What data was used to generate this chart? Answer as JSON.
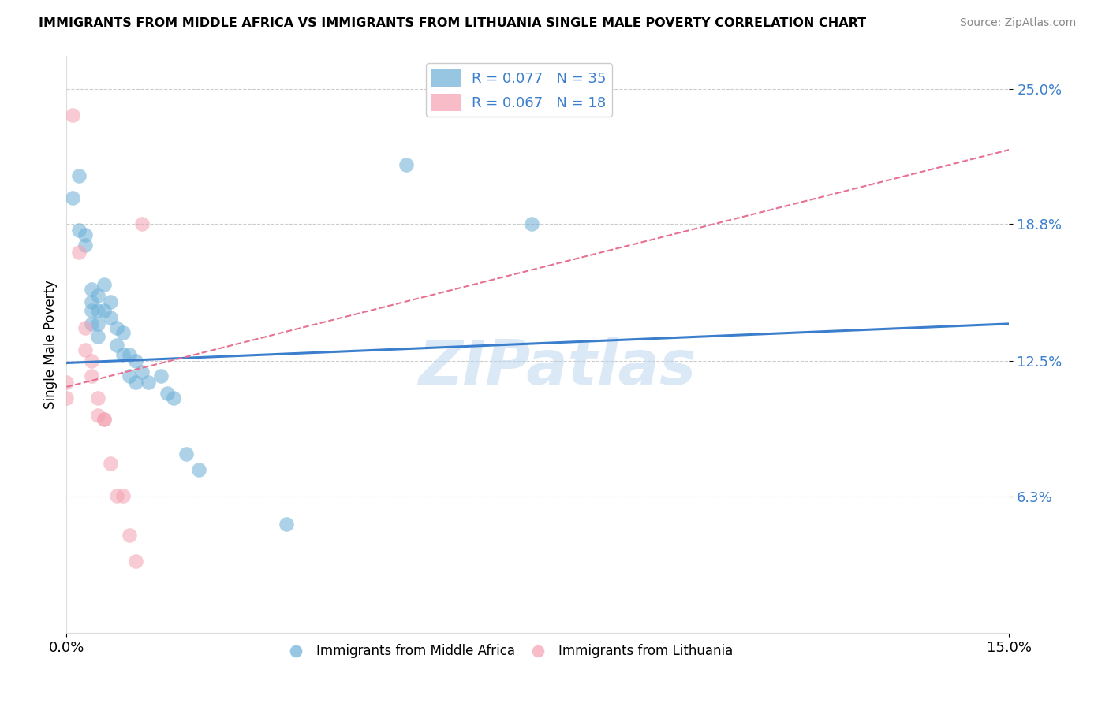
{
  "title": "IMMIGRANTS FROM MIDDLE AFRICA VS IMMIGRANTS FROM LITHUANIA SINGLE MALE POVERTY CORRELATION CHART",
  "source": "Source: ZipAtlas.com",
  "ylabel": "Single Male Poverty",
  "watermark": "ZIPatlas",
  "legend1_text": "R = 0.077   N = 35",
  "legend2_text": "R = 0.067   N = 18",
  "blue_color": "#6aaed6",
  "pink_color": "#f4a0b0",
  "blue_line_color": "#3b7fcc",
  "pink_line_color": "#e87090",
  "blue_scatter": [
    [
      0.001,
      0.2
    ],
    [
      0.002,
      0.185
    ],
    [
      0.002,
      0.21
    ],
    [
      0.003,
      0.183
    ],
    [
      0.003,
      0.178
    ],
    [
      0.004,
      0.158
    ],
    [
      0.004,
      0.152
    ],
    [
      0.004,
      0.148
    ],
    [
      0.004,
      0.142
    ],
    [
      0.005,
      0.155
    ],
    [
      0.005,
      0.148
    ],
    [
      0.005,
      0.142
    ],
    [
      0.005,
      0.136
    ],
    [
      0.006,
      0.16
    ],
    [
      0.006,
      0.148
    ],
    [
      0.007,
      0.152
    ],
    [
      0.007,
      0.145
    ],
    [
      0.008,
      0.14
    ],
    [
      0.008,
      0.132
    ],
    [
      0.009,
      0.138
    ],
    [
      0.009,
      0.128
    ],
    [
      0.01,
      0.128
    ],
    [
      0.01,
      0.118
    ],
    [
      0.011,
      0.125
    ],
    [
      0.011,
      0.115
    ],
    [
      0.012,
      0.12
    ],
    [
      0.013,
      0.115
    ],
    [
      0.015,
      0.118
    ],
    [
      0.016,
      0.11
    ],
    [
      0.017,
      0.108
    ],
    [
      0.019,
      0.082
    ],
    [
      0.021,
      0.075
    ],
    [
      0.035,
      0.05
    ],
    [
      0.054,
      0.215
    ],
    [
      0.074,
      0.188
    ]
  ],
  "pink_scatter": [
    [
      0.0,
      0.115
    ],
    [
      0.0,
      0.108
    ],
    [
      0.001,
      0.238
    ],
    [
      0.002,
      0.175
    ],
    [
      0.003,
      0.14
    ],
    [
      0.003,
      0.13
    ],
    [
      0.004,
      0.125
    ],
    [
      0.004,
      0.118
    ],
    [
      0.005,
      0.108
    ],
    [
      0.005,
      0.1
    ],
    [
      0.006,
      0.098
    ],
    [
      0.006,
      0.098
    ],
    [
      0.007,
      0.078
    ],
    [
      0.008,
      0.063
    ],
    [
      0.009,
      0.063
    ],
    [
      0.01,
      0.045
    ],
    [
      0.011,
      0.033
    ],
    [
      0.012,
      0.188
    ]
  ],
  "blue_line": [
    [
      0.0,
      0.124
    ],
    [
      0.15,
      0.142
    ]
  ],
  "pink_line": [
    [
      0.0,
      0.113
    ],
    [
      0.15,
      0.222
    ]
  ],
  "xlim": [
    0.0,
    0.15
  ],
  "ylim": [
    0.0,
    0.265
  ],
  "ytick_positions": [
    0.0625,
    0.125,
    0.188,
    0.25
  ],
  "ytick_labels": [
    "6.3%",
    "12.5%",
    "18.8%",
    "25.0%"
  ],
  "legend_bottom": [
    "Immigrants from Middle Africa",
    "Immigrants from Lithuania"
  ]
}
